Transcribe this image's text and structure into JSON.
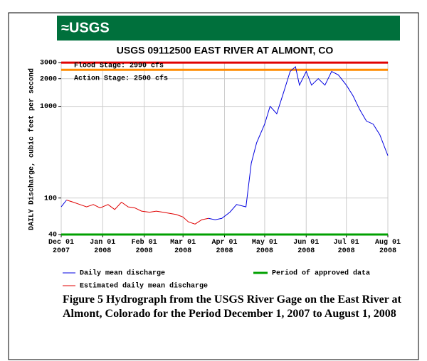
{
  "banner_logo": "≈USGS",
  "chart_data": {
    "type": "line",
    "title": "USGS 09112500 EAST RIVER AT ALMONT, CO",
    "y_label": "DAILY Discharge, cubic feet per second",
    "log_scale": true,
    "grid": true,
    "xlim": [
      "2007-12-01",
      "2008-08-01"
    ],
    "xticks": [
      {
        "value": "2007-12-01",
        "label": "Dec 01\n2007"
      },
      {
        "value": "2008-01-01",
        "label": "Jan 01\n2008"
      },
      {
        "value": "2008-02-01",
        "label": "Feb 01\n2008"
      },
      {
        "value": "2008-03-01",
        "label": "Mar 01\n2008"
      },
      {
        "value": "2008-04-01",
        "label": "Apr 01\n2008"
      },
      {
        "value": "2008-05-01",
        "label": "May 01\n2008"
      },
      {
        "value": "2008-06-01",
        "label": "Jun 01\n2008"
      },
      {
        "value": "2008-07-01",
        "label": "Jul 01\n2008"
      },
      {
        "value": "2008-08-01",
        "label": "Aug 01\n2008"
      }
    ],
    "ylim": [
      40,
      3000
    ],
    "yticks": [
      40,
      100,
      1000,
      2000,
      3000
    ],
    "x": [
      "2007-12-01",
      "2007-12-05",
      "2007-12-10",
      "2007-12-15",
      "2007-12-20",
      "2007-12-25",
      "2007-12-30",
      "2008-01-05",
      "2008-01-10",
      "2008-01-15",
      "2008-01-20",
      "2008-01-25",
      "2008-01-30",
      "2008-02-05",
      "2008-02-10",
      "2008-02-15",
      "2008-02-20",
      "2008-02-25",
      "2008-03-01",
      "2008-03-05",
      "2008-03-10",
      "2008-03-15",
      "2008-03-20",
      "2008-03-25",
      "2008-03-30",
      "2008-04-05",
      "2008-04-10",
      "2008-04-17",
      "2008-04-21",
      "2008-04-25",
      "2008-05-01",
      "2008-05-05",
      "2008-05-10",
      "2008-05-15",
      "2008-05-20",
      "2008-05-24",
      "2008-05-27",
      "2008-06-01",
      "2008-06-05",
      "2008-06-10",
      "2008-06-15",
      "2008-06-20",
      "2008-06-25",
      "2008-07-01",
      "2008-07-06",
      "2008-07-11",
      "2008-07-16",
      "2008-07-21",
      "2008-07-26",
      "2008-08-01"
    ],
    "series": [
      {
        "name": "Daily mean discharge",
        "color": "#0000e0",
        "values": [
          80,
          95,
          null,
          null,
          null,
          null,
          null,
          null,
          null,
          null,
          null,
          null,
          null,
          null,
          null,
          null,
          null,
          null,
          null,
          null,
          null,
          null,
          60,
          58,
          60,
          70,
          85,
          80,
          240,
          400,
          640,
          1000,
          830,
          1400,
          2400,
          2700,
          1700,
          2400,
          1700,
          2000,
          1700,
          2400,
          2200,
          1700,
          1300,
          920,
          690,
          640,
          490,
          290
        ]
      },
      {
        "name": "Estimated daily mean discharge",
        "color": "#e00000",
        "values": [
          null,
          95,
          90,
          85,
          80,
          85,
          78,
          85,
          75,
          90,
          80,
          78,
          72,
          70,
          72,
          70,
          68,
          66,
          62,
          55,
          52,
          58,
          60,
          null,
          null,
          null,
          null,
          null,
          null,
          null,
          null,
          null,
          null,
          null,
          null,
          null,
          null,
          null,
          null,
          null,
          null,
          null,
          null,
          null,
          null,
          null,
          null,
          null,
          null,
          null
        ]
      }
    ],
    "approved_period": {
      "name": "Period of approved data",
      "color": "#00a000",
      "x": [
        "2007-12-01",
        "2008-08-01"
      ]
    },
    "thresholds": [
      {
        "label": "Flood Stage: 2990 cfs",
        "value": 2990,
        "color": "#e00000"
      },
      {
        "label": "Action Stage: 2500 cfs",
        "value": 2500,
        "color": "#ff8c00"
      }
    ]
  },
  "caption": "Figure 5 Hydrograph from the USGS River Gage on the East River at Almont, Colorado for the Period December 1, 2007 to August 1, 2008"
}
